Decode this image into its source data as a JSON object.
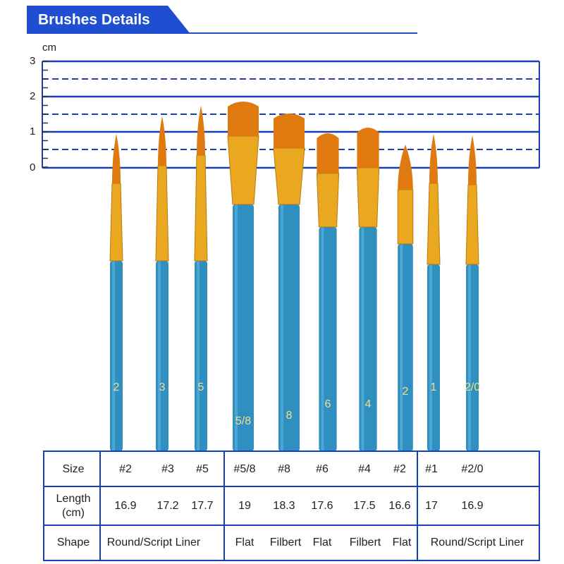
{
  "header": {
    "title": "Brushes Details"
  },
  "ruler": {
    "unit": "cm",
    "labels": [
      "3",
      "2",
      "1",
      "0"
    ]
  },
  "brushes": [
    "2",
    "3",
    "5",
    "5/8",
    "8",
    "6",
    "4",
    "2",
    "1",
    "2/0"
  ],
  "table": {
    "size": {
      "label": "Size",
      "values": [
        "#2",
        "#3",
        "#5",
        "#5/8",
        "#8",
        "#6",
        "#4",
        "#2",
        "#1",
        "#2/0"
      ]
    },
    "length": {
      "label": "Length\n(cm)",
      "values": [
        16.9,
        17.2,
        17.7,
        19,
        18.3,
        17.6,
        17.5,
        16.6,
        17,
        16.9
      ]
    },
    "shape": {
      "label": "Shape",
      "values": [
        "Round/Script Liner",
        "Flat",
        "Filbert",
        "Flat",
        "Filbert",
        "Flat",
        "Round/Script Liner"
      ]
    }
  }
}
